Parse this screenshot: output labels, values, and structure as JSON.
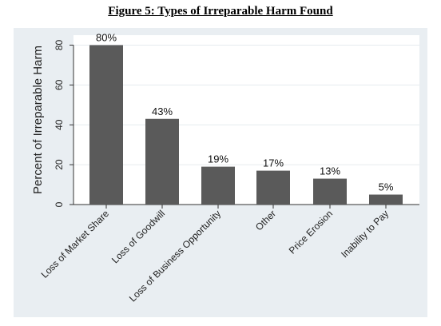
{
  "figure": {
    "title": "Figure 5:  Types of Irreparable Harm Found"
  },
  "chart_data": {
    "type": "bar",
    "title": "Figure 5:  Types of Irreparable Harm Found",
    "xlabel": "",
    "ylabel": "Percent of Irreparable Harm",
    "categories": [
      "Loss of Market Share",
      "Loss of Goodwill",
      "Loss of Business Opportunity",
      "Other",
      "Price Erosion",
      "Inability to Pay"
    ],
    "values": [
      80,
      43,
      19,
      17,
      13,
      5
    ],
    "data_labels": [
      "80%",
      "43%",
      "19%",
      "17%",
      "13%",
      "5%"
    ],
    "ylim": [
      0,
      85
    ],
    "yticks": [
      0,
      20,
      40,
      60,
      80
    ],
    "grid": true,
    "colors": {
      "bar": "#5a5a5a",
      "plot_bg": "#ffffff",
      "panel_bg": "#e9eef2",
      "grid": "#e6ebef"
    }
  }
}
